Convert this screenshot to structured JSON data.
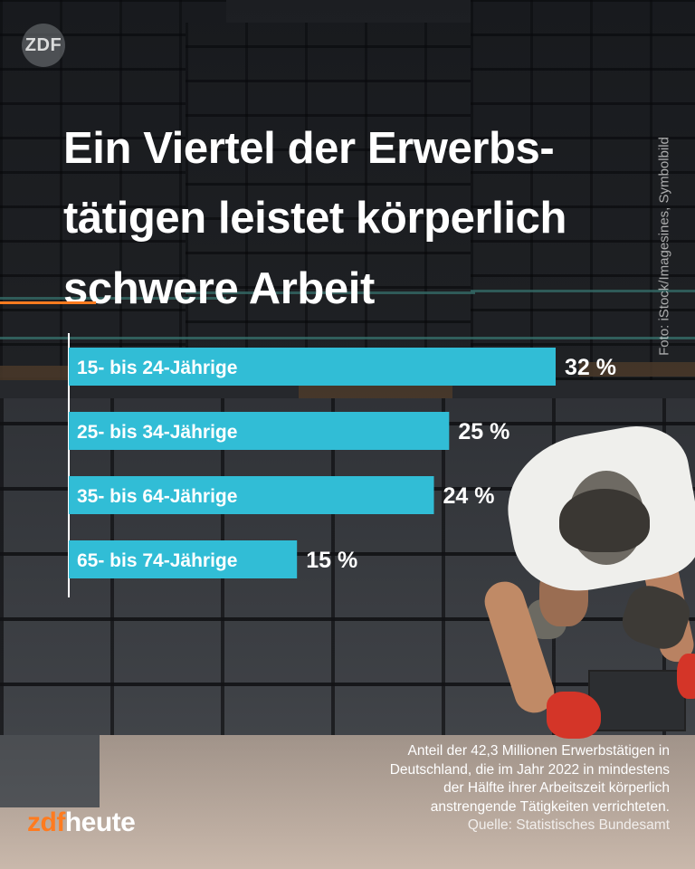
{
  "header": {
    "logo_text": "ZDF",
    "title_lines": [
      "Ein Viertel der Erwerbs-",
      "tätigen leistet körperlich",
      "schwere Arbeit"
    ]
  },
  "photo_credit": "Foto: iStock/Imagesines, Symbolbild",
  "chart_data": {
    "type": "bar",
    "orientation": "horizontal",
    "categories": [
      "15- bis 24-Jährige",
      "25- bis 34-Jährige",
      "35- bis 64-Jährige",
      "65- bis 74-Jährige"
    ],
    "values": [
      32,
      25,
      24,
      15
    ],
    "value_labels": [
      "32 %",
      "25 %",
      "24 %",
      "15 %"
    ],
    "unit": "%",
    "xlim": [
      0,
      32
    ],
    "grid": false,
    "bar_color": "#31bdd6"
  },
  "caption": {
    "lines": [
      "Anteil der 42,3 Millionen Erwerbstätigen in",
      "Deutschland, die im Jahr 2022 in mindestens",
      "der Hälfte ihrer Arbeitszeit körperlich",
      "anstrengende Tätigkeiten verrichteten."
    ],
    "source": "Quelle: Statistisches Bundesamt"
  },
  "brand": {
    "part1": "zdf",
    "part2": "heute"
  },
  "colors": {
    "accent_orange": "#ff7b1f",
    "bar": "#31bdd6",
    "text": "#ffffff"
  }
}
